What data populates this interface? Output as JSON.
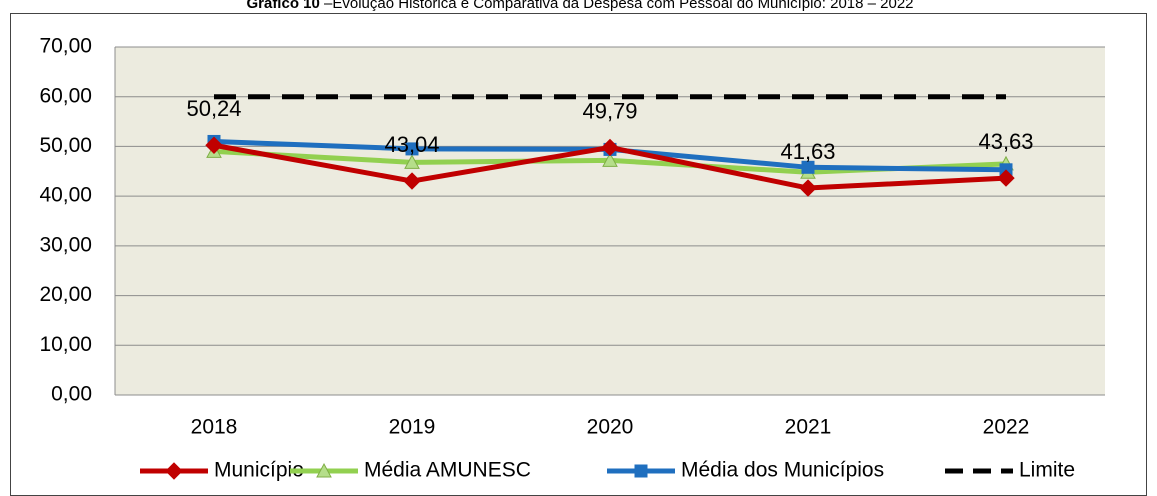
{
  "chart_data": {
    "type": "line",
    "title_prefix": "Gráfico 10",
    "title": "–Evolução Histórica e Comparativa da Despesa com Pessoal do Município: 2018 – 2022",
    "categories": [
      "2018",
      "2019",
      "2020",
      "2021",
      "2022"
    ],
    "series": [
      {
        "name": "Município",
        "color": "#c00000",
        "marker": "diamond",
        "values": [
          50.24,
          43.04,
          49.79,
          41.63,
          43.63
        ],
        "value_labels": [
          "50,24",
          "43,04",
          "49,79",
          "41,63",
          "43,63"
        ]
      },
      {
        "name": "Média AMUNESC",
        "color": "#92d050",
        "marker": "triangle",
        "values": [
          49.0,
          46.8,
          47.2,
          44.8,
          46.5
        ]
      },
      {
        "name": "Média dos Municípios",
        "color": "#1f6fbf",
        "marker": "square",
        "values": [
          51.0,
          49.5,
          49.4,
          45.8,
          45.3
        ]
      },
      {
        "name": "Limite",
        "color": "#000000",
        "dashed": true,
        "values": [
          60,
          60,
          60,
          60,
          60
        ]
      }
    ],
    "ylim": [
      0,
      70
    ],
    "yticks": [
      {
        "value": 0,
        "label": "0,00"
      },
      {
        "value": 10,
        "label": "10,00"
      },
      {
        "value": 20,
        "label": "20,00"
      },
      {
        "value": 30,
        "label": "30,00"
      },
      {
        "value": 40,
        "label": "40,00"
      },
      {
        "value": 50,
        "label": "50,00"
      },
      {
        "value": 60,
        "label": "60,00"
      },
      {
        "value": 70,
        "label": "70,00"
      }
    ],
    "grid": true,
    "legend": "bottom"
  }
}
